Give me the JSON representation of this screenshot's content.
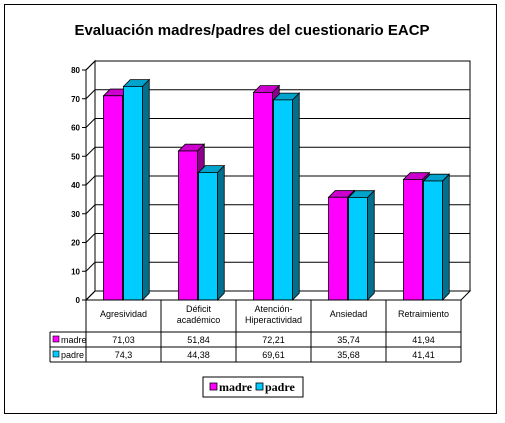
{
  "chart_data": {
    "type": "bar",
    "title": "Evaluación madres/padres del cuestionario EACP",
    "categories": [
      [
        "Agresividad"
      ],
      [
        "Déficit",
        "académico"
      ],
      [
        "Atención-",
        "Hiperactividad"
      ],
      [
        "Ansiedad"
      ],
      [
        "Retraimiento"
      ]
    ],
    "series": [
      {
        "name": "madre",
        "color": "#ff00ff",
        "values": [
          71.03,
          51.84,
          72.21,
          35.74,
          41.94
        ],
        "labels": [
          "71,03",
          "51,84",
          "72,21",
          "35,74",
          "41,94"
        ]
      },
      {
        "name": "padre",
        "color": "#00ccff",
        "values": [
          74.3,
          44.38,
          69.61,
          35.68,
          41.41
        ],
        "labels": [
          "74,3",
          "44,38",
          "69,61",
          "35,68",
          "41,41"
        ]
      }
    ],
    "ylim": [
      0,
      80
    ],
    "yticks": [
      0,
      10,
      20,
      30,
      40,
      50,
      60,
      70,
      80
    ],
    "grid": true,
    "legend_placement": "bottom",
    "data_table": true,
    "xlabel": "",
    "ylabel": ""
  }
}
